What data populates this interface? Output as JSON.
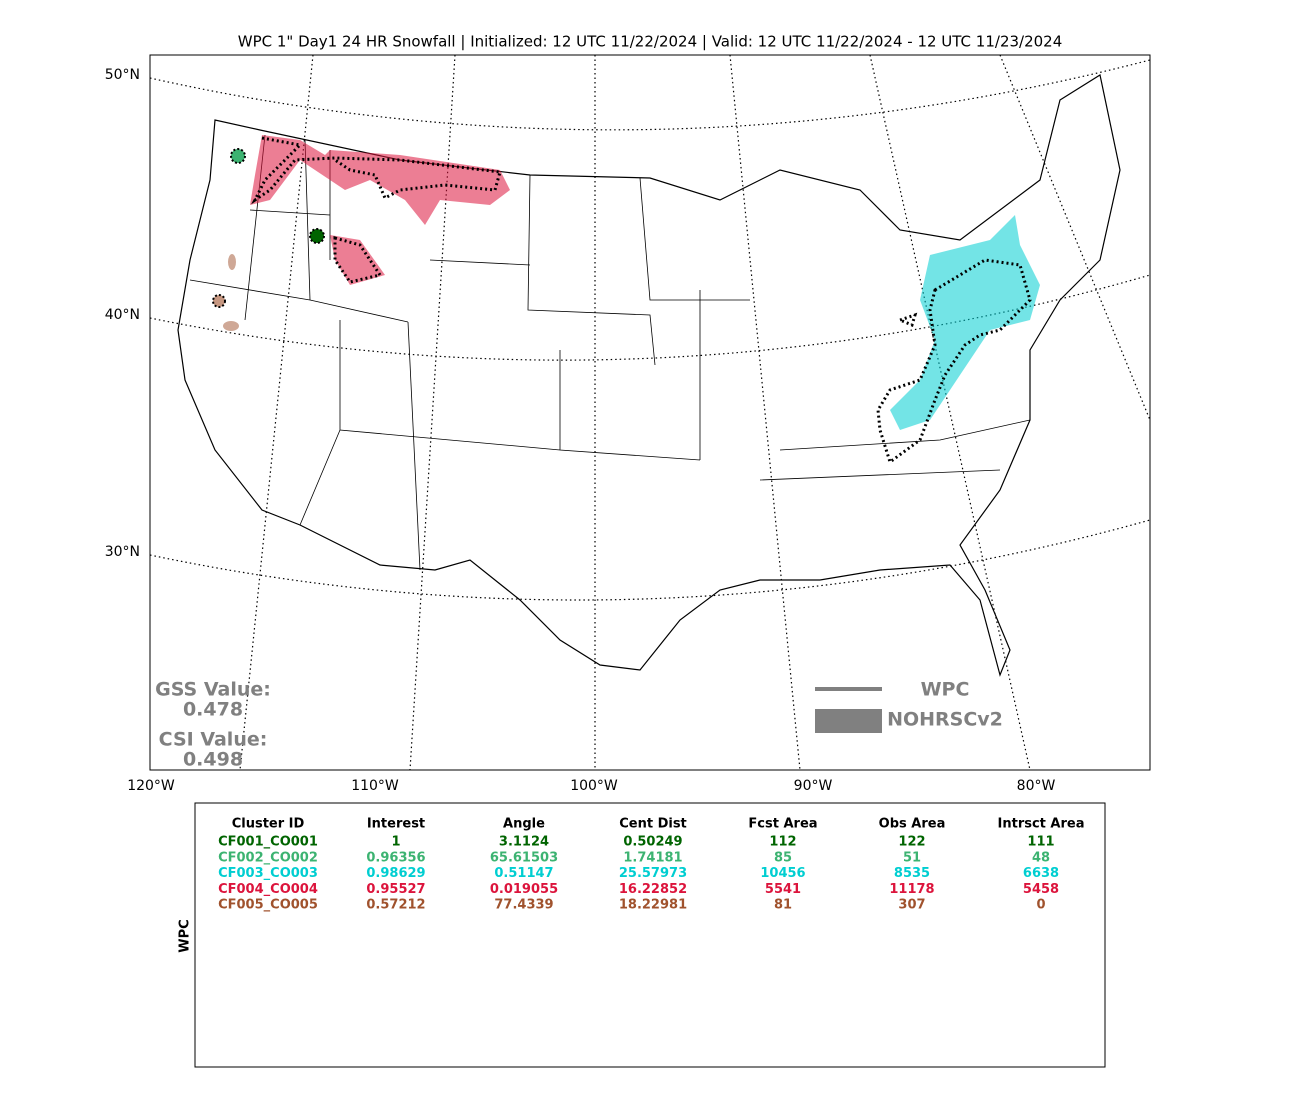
{
  "title": "WPC 1\" Day1 24 HR Snowfall | Initialized: 12 UTC 11/22/2024 | Valid: 12 UTC 11/22/2024 - 12 UTC 11/23/2024",
  "map": {
    "lat_labels": [
      "50°N",
      "40°N",
      "30°N"
    ],
    "lon_labels": [
      "120°W",
      "110°W",
      "100°W",
      "90°W",
      "80°W"
    ],
    "stats": [
      {
        "label": "GSS Value:",
        "value": "0.478"
      },
      {
        "label": "CSI Value:",
        "value": "0.498"
      }
    ],
    "legend": [
      "WPC",
      "NOHRSCv2"
    ]
  },
  "table": {
    "side_label": "WPC",
    "columns": [
      "Cluster ID",
      "Interest",
      "Angle",
      "Cent Dist",
      "Fcst Area",
      "Obs Area",
      "Intrsct Area"
    ],
    "row_colors": [
      "#006400",
      "#3cb371",
      "#00ced1",
      "#dc143c",
      "#a0522d"
    ],
    "rows": [
      [
        "CF001_CO001",
        "1",
        "3.1124",
        "0.50249",
        "112",
        "122",
        "111"
      ],
      [
        "CF002_CO002",
        "0.96356",
        "65.61503",
        "1.74181",
        "85",
        "51",
        "48"
      ],
      [
        "CF003_CO003",
        "0.98629",
        "0.51147",
        "25.57973",
        "10456",
        "8535",
        "6638"
      ],
      [
        "CF004_CO004",
        "0.95527",
        "0.019055",
        "16.22852",
        "5541",
        "11178",
        "5458"
      ],
      [
        "CF005_CO005",
        "0.57212",
        "77.4339",
        "18.22981",
        "81",
        "307",
        "0"
      ]
    ]
  }
}
